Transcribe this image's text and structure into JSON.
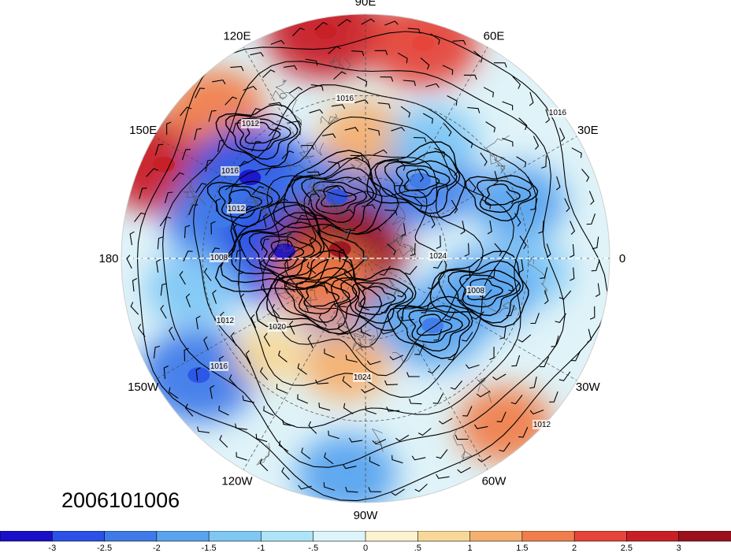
{
  "datestamp": "2006101006",
  "longitude_labels": [
    "90E",
    "60E",
    "30E",
    "0",
    "30W",
    "60W",
    "90W",
    "120W",
    "150W",
    "180",
    "150E",
    "120E"
  ],
  "contour_labels": [
    "1016",
    "1012",
    "1016",
    "1012",
    "1008",
    "1012",
    "1016",
    "1020",
    "1024",
    "1012",
    "1008",
    "1024",
    "1016"
  ],
  "colorbar": {
    "tick_labels": [
      "-3",
      "-2.5",
      "-2",
      "-1.5",
      "-1",
      "-.5",
      "0",
      ".5",
      "1",
      "1.5",
      "2",
      "2.5",
      "3"
    ],
    "colors": [
      "#1a0fc8",
      "#2a52e6",
      "#3f7ae9",
      "#5aa3ef",
      "#7fc7f5",
      "#aee4f7",
      "#dcf4fa",
      "#fbf2d0",
      "#f8d898",
      "#f5b070",
      "#f07e4c",
      "#e5453a",
      "#c81f26",
      "#9c0f1c"
    ]
  },
  "anomaly_field": [
    {
      "lon": 100,
      "lat": 5,
      "value": 2.5
    },
    {
      "lon": 75,
      "lat": 8,
      "value": 2.2
    },
    {
      "lon": 155,
      "lat": 8,
      "value": 2.6
    },
    {
      "lon": 135,
      "lat": 12,
      "value": 1.8
    },
    {
      "lon": 145,
      "lat": 38,
      "value": -2.8
    },
    {
      "lon": 165,
      "lat": 35,
      "value": -2.2
    },
    {
      "lon": 175,
      "lat": 60,
      "value": -3.0
    },
    {
      "lon": 115,
      "lat": 65,
      "value": -2.5
    },
    {
      "lon": 55,
      "lat": 55,
      "value": -2.2
    },
    {
      "lon": 20,
      "lat": 30,
      "value": -1.6
    },
    {
      "lon": -5,
      "lat": 30,
      "value": -1.2
    },
    {
      "lon": -45,
      "lat": 55,
      "value": -2.0
    },
    {
      "lon": -15,
      "lat": 45,
      "value": -1.8
    },
    {
      "lon": -110,
      "lat": 70,
      "value": -1.6
    },
    {
      "lon": 160,
      "lat": 80,
      "value": 3.0
    },
    {
      "lon": -150,
      "lat": 72,
      "value": 1.8
    },
    {
      "lon": -100,
      "lat": 50,
      "value": 1.4
    },
    {
      "lon": -170,
      "lat": 25,
      "value": -1.5
    },
    {
      "lon": -145,
      "lat": 15,
      "value": -2.4
    },
    {
      "lon": -50,
      "lat": 10,
      "value": 1.6
    },
    {
      "lon": -95,
      "lat": 10,
      "value": -1.8
    },
    {
      "lon": 90,
      "lat": 45,
      "value": 1.4
    },
    {
      "lon": 60,
      "lat": 40,
      "value": -1.4
    },
    {
      "lon": -135,
      "lat": 40,
      "value": 0.8
    }
  ]
}
